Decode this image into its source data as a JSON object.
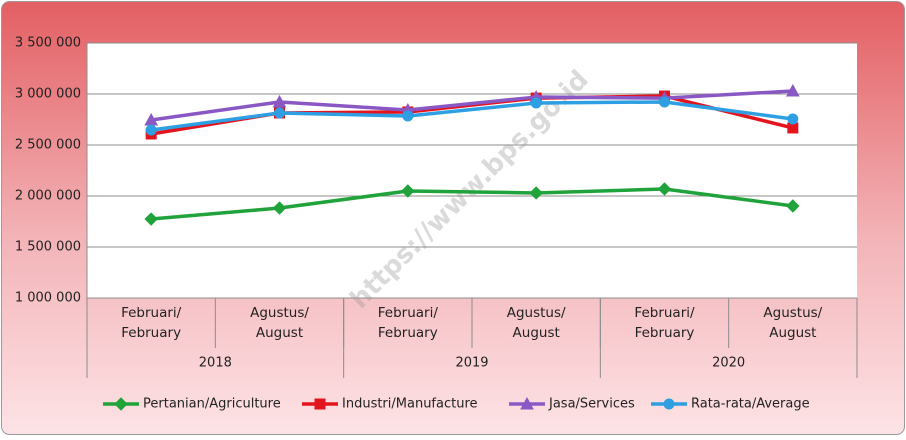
{
  "chart_data": {
    "type": "line",
    "categories": [
      "Februari/ February",
      "Agustus/ August",
      "Februari/ February",
      "Agustus/ August",
      "Februari/ February",
      "Agustus/ August"
    ],
    "groups": [
      "2018",
      "2019",
      "2020"
    ],
    "series": [
      {
        "name": "Pertanian/Agriculture",
        "color": "#1fa33a",
        "marker": "diamond",
        "values": [
          1774000,
          1882000,
          2049000,
          2030000,
          2069000,
          1902000
        ]
      },
      {
        "name": "Industri/Manufacture",
        "color": "#e3141d",
        "marker": "square",
        "values": [
          2608000,
          2814000,
          2824000,
          2960000,
          2980000,
          2667000
        ]
      },
      {
        "name": "Jasa/Services",
        "color": "#8a58c4",
        "marker": "triangle",
        "values": [
          2745000,
          2922000,
          2843000,
          2970000,
          2960000,
          3029000
        ]
      },
      {
        "name": "Rata-rata/Average",
        "color": "#2d9fe2",
        "marker": "circle",
        "values": [
          2647000,
          2814000,
          2784000,
          2912000,
          2922000,
          2755000
        ]
      }
    ],
    "ylim": [
      1000000,
      3500000
    ],
    "yticks": [
      {
        "value": 1000000,
        "label": "1 000 000"
      },
      {
        "value": 1500000,
        "label": "1 500 000"
      },
      {
        "value": 2000000,
        "label": "2 000 000"
      },
      {
        "value": 2500000,
        "label": "2 500 000"
      },
      {
        "value": 3000000,
        "label": "3 000 000"
      },
      {
        "value": 3500000,
        "label": "3 500 000"
      }
    ],
    "grid": true,
    "legend": "bottom",
    "watermark": "https://www.bps.go.id"
  }
}
